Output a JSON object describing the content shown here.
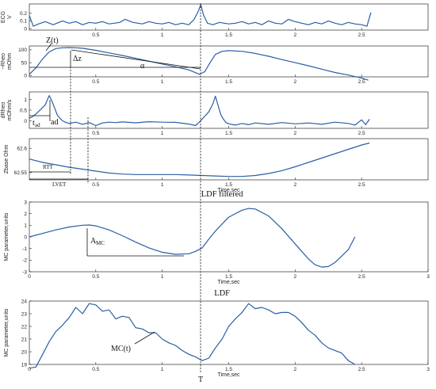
{
  "chart_data": [
    {
      "id": "ecg",
      "type": "line",
      "title": "",
      "xlabel": "",
      "ylabel": "ECG\nV",
      "xlim": [
        0,
        3
      ],
      "ylim": [
        -0.02,
        0.32
      ],
      "yticks": [
        0,
        0.1,
        0.2
      ],
      "xticks": [
        0.5,
        1,
        1.5,
        2,
        2.5
      ],
      "xticklabels": [
        "0.5",
        "1",
        "1.5",
        "2",
        "2.5"
      ],
      "series": [
        {
          "x": [
            0,
            0.03,
            0.07,
            0.12,
            0.18,
            0.25,
            0.3,
            0.35,
            0.4,
            0.45,
            0.5,
            0.55,
            0.6,
            0.68,
            0.72,
            0.78,
            0.85,
            0.9,
            0.95,
            1.0,
            1.05,
            1.1,
            1.15,
            1.2,
            1.24,
            1.27,
            1.29,
            1.31,
            1.34,
            1.38,
            1.43,
            1.5,
            1.55,
            1.6,
            1.65,
            1.7,
            1.75,
            1.8,
            1.85,
            1.9,
            1.95,
            2.0,
            2.05,
            2.1,
            2.15,
            2.2,
            2.25,
            2.3,
            2.35,
            2.4,
            2.45,
            2.5,
            2.54,
            2.57
          ],
          "values": [
            0.17,
            0.03,
            0.06,
            0.09,
            0.05,
            0.1,
            0.07,
            0.09,
            0.05,
            0.08,
            0.07,
            0.09,
            0.06,
            0.08,
            0.12,
            0.08,
            0.06,
            0.09,
            0.07,
            0.06,
            0.08,
            0.05,
            0.07,
            0.05,
            0.12,
            0.22,
            0.31,
            0.18,
            0.07,
            0.05,
            0.08,
            0.06,
            0.07,
            0.09,
            0.06,
            0.08,
            0.05,
            0.1,
            0.07,
            0.06,
            0.12,
            0.09,
            0.07,
            0.05,
            0.08,
            0.06,
            0.1,
            0.07,
            0.05,
            0.08,
            0.06,
            0.05,
            0.03,
            0.21
          ]
        }
      ]
    },
    {
      "id": "rheo",
      "type": "line",
      "title": "",
      "xlabel": "",
      "ylabel": "−Rheo\nmOhm",
      "xlim": [
        0,
        3
      ],
      "ylim": [
        -5,
        115
      ],
      "yticks": [
        0,
        50,
        100
      ],
      "xticks": [
        0.5,
        1,
        1.5,
        2,
        2.5
      ],
      "xticklabels": [
        "0.5",
        "1",
        "1.5",
        "2",
        "2.5"
      ],
      "series": [
        {
          "x": [
            0,
            0.05,
            0.1,
            0.15,
            0.2,
            0.25,
            0.3,
            0.35,
            0.4,
            0.5,
            0.6,
            0.7,
            0.8,
            0.9,
            1.0,
            1.1,
            1.2,
            1.28,
            1.32,
            1.36,
            1.4,
            1.45,
            1.5,
            1.6,
            1.7,
            1.8,
            1.9,
            2.0,
            2.1,
            2.2,
            2.3,
            2.4,
            2.5,
            2.55
          ],
          "values": [
            5,
            30,
            65,
            92,
            105,
            108,
            109,
            108,
            106,
            98,
            88,
            78,
            67,
            56,
            45,
            34,
            22,
            5,
            15,
            50,
            82,
            94,
            97,
            94,
            86,
            75,
            62,
            50,
            38,
            25,
            12,
            2,
            -10,
            -18
          ]
        }
      ]
    },
    {
      "id": "drheo",
      "type": "line",
      "title": "",
      "xlabel": "",
      "ylabel": "dRheo\nmOhm/s",
      "xlim": [
        0,
        3
      ],
      "ylim": [
        -0.35,
        1.35
      ],
      "yticks": [
        0,
        0.5,
        1
      ],
      "xticks": [
        0.5,
        1,
        1.5,
        2,
        2.5
      ],
      "xticklabels": [
        "0.5",
        "1",
        "1.5",
        "2",
        "2.5"
      ],
      "series": [
        {
          "x": [
            0,
            0.03,
            0.06,
            0.09,
            0.12,
            0.15,
            0.17,
            0.19,
            0.21,
            0.23,
            0.25,
            0.27,
            0.3,
            0.35,
            0.4,
            0.45,
            0.5,
            0.55,
            0.6,
            0.65,
            0.7,
            0.8,
            0.9,
            1.0,
            1.1,
            1.2,
            1.25,
            1.28,
            1.31,
            1.35,
            1.38,
            1.4,
            1.42,
            1.44,
            1.46,
            1.48,
            1.5,
            1.55,
            1.6,
            1.65,
            1.7,
            1.8,
            1.9,
            2.0,
            2.1,
            2.2,
            2.3,
            2.4,
            2.45,
            2.5,
            2.53,
            2.56
          ],
          "values": [
            0.12,
            0.22,
            0.38,
            0.56,
            0.75,
            1.18,
            0.92,
            0.6,
            0.28,
            0.12,
            0.0,
            -0.06,
            -0.12,
            -0.06,
            -0.16,
            -0.08,
            -0.22,
            -0.1,
            -0.06,
            -0.08,
            -0.05,
            -0.09,
            -0.04,
            -0.06,
            -0.07,
            -0.15,
            -0.22,
            -0.05,
            0.15,
            0.42,
            0.78,
            1.15,
            0.72,
            0.3,
            0.08,
            -0.08,
            -0.14,
            -0.2,
            -0.12,
            -0.18,
            -0.1,
            -0.16,
            -0.08,
            -0.14,
            -0.1,
            -0.16,
            -0.06,
            -0.12,
            -0.2,
            0.05,
            -0.18,
            0.08
          ]
        }
      ]
    },
    {
      "id": "zbase",
      "type": "line",
      "title": "",
      "xlabel": "Time,sec",
      "ylabel": "Zbase Ohm",
      "xlim": [
        0,
        3
      ],
      "ylim": [
        62.535,
        62.62
      ],
      "yticks": [
        62.55,
        62.6
      ],
      "yticklabels": [
        "62.55",
        "62.6"
      ],
      "xticks": [
        0.5,
        1,
        1.5,
        2,
        2.5
      ],
      "xticklabels": [
        "0.5",
        "1",
        "1.5",
        "2",
        "2.5"
      ],
      "series": [
        {
          "x": [
            0,
            0.1,
            0.2,
            0.3,
            0.4,
            0.5,
            0.6,
            0.7,
            0.8,
            0.9,
            1.0,
            1.1,
            1.2,
            1.3,
            1.4,
            1.5,
            1.6,
            1.7,
            1.8,
            1.9,
            2.0,
            2.1,
            2.2,
            2.3,
            2.4,
            2.5,
            2.56
          ],
          "values": [
            62.578,
            62.571,
            62.566,
            62.561,
            62.557,
            62.553,
            62.549,
            62.547,
            62.546,
            62.546,
            62.546,
            62.546,
            62.545,
            62.544,
            62.543,
            62.542,
            62.542,
            62.544,
            62.548,
            62.554,
            62.562,
            62.571,
            62.58,
            62.589,
            62.598,
            62.607,
            62.611
          ]
        }
      ]
    },
    {
      "id": "ldf-filtered",
      "type": "line",
      "title": "LDF filtered",
      "xlabel": "Time,sec",
      "ylabel": "MC parameter,units",
      "xlim": [
        0,
        3
      ],
      "ylim": [
        -3,
        3
      ],
      "yticks": [
        -3,
        -2,
        -1,
        0,
        1,
        2,
        3
      ],
      "xticks": [
        0,
        0.5,
        1,
        1.5,
        2,
        2.5,
        3
      ],
      "xticklabels": [
        "0",
        "0.5",
        "1",
        "1.5",
        "2",
        "2.5",
        "3"
      ],
      "series": [
        {
          "x": [
            0,
            0.1,
            0.2,
            0.3,
            0.4,
            0.45,
            0.5,
            0.6,
            0.7,
            0.8,
            0.9,
            1.0,
            1.1,
            1.2,
            1.25,
            1.3,
            1.35,
            1.4,
            1.5,
            1.6,
            1.65,
            1.7,
            1.8,
            1.9,
            2.0,
            2.1,
            2.15,
            2.2,
            2.25,
            2.3,
            2.4,
            2.45
          ],
          "values": [
            0.0,
            0.3,
            0.6,
            0.85,
            1.0,
            1.02,
            0.95,
            0.6,
            0.1,
            -0.45,
            -0.95,
            -1.32,
            -1.5,
            -1.45,
            -1.25,
            -0.95,
            -0.2,
            0.5,
            1.7,
            2.3,
            2.45,
            2.4,
            1.8,
            0.7,
            -0.6,
            -1.9,
            -2.4,
            -2.6,
            -2.55,
            -2.2,
            -1.1,
            0.0
          ]
        }
      ]
    },
    {
      "id": "ldf",
      "type": "line",
      "title": "LDF",
      "xlabel": "Time,sec",
      "ylabel": "MC parameter,units",
      "xlim": [
        0,
        3
      ],
      "ylim": [
        19,
        24
      ],
      "yticks": [
        19,
        20,
        21,
        22,
        23,
        24
      ],
      "xticks": [
        0,
        0.5,
        1,
        1.5,
        2,
        2.5,
        3
      ],
      "xticklabels": [
        "0",
        "0.5",
        "1",
        "1.5",
        "2",
        "2.5",
        "3"
      ],
      "series": [
        {
          "x": [
            0,
            0.05,
            0.1,
            0.15,
            0.2,
            0.25,
            0.3,
            0.35,
            0.4,
            0.45,
            0.5,
            0.55,
            0.6,
            0.65,
            0.7,
            0.75,
            0.8,
            0.85,
            0.9,
            0.95,
            1.0,
            1.05,
            1.1,
            1.15,
            1.2,
            1.25,
            1.3,
            1.35,
            1.4,
            1.45,
            1.5,
            1.55,
            1.6,
            1.65,
            1.7,
            1.75,
            1.8,
            1.85,
            1.9,
            1.95,
            2.0,
            2.05,
            2.1,
            2.15,
            2.2,
            2.25,
            2.3,
            2.35,
            2.4,
            2.45
          ],
          "values": [
            18.7,
            18.8,
            19.8,
            20.8,
            21.6,
            22.1,
            22.7,
            23.5,
            23.0,
            23.8,
            23.7,
            23.2,
            23.3,
            22.6,
            22.8,
            22.7,
            21.9,
            21.8,
            21.5,
            21.5,
            21.0,
            20.7,
            20.5,
            20.1,
            19.8,
            19.6,
            19.3,
            19.5,
            20.3,
            21.0,
            22.0,
            22.6,
            23.1,
            23.8,
            23.4,
            23.5,
            23.3,
            23.0,
            23.1,
            23.1,
            22.8,
            22.3,
            21.7,
            21.3,
            20.7,
            20.3,
            20.1,
            19.9,
            19.3,
            19.0
          ]
        }
      ]
    }
  ],
  "annotations": {
    "z_t": "Z(t)",
    "delta_z": "Δz",
    "alpha": "α",
    "ad": "ad",
    "t_ad": "t",
    "t_ad_sub": "ad",
    "rtt": "RTT",
    "lvet": "LVET",
    "a_mc": "A",
    "a_mc_sub": "MC",
    "mc_t": "MC(t)",
    "t_marker": "T"
  },
  "colors": {
    "series": "#2a5fa6",
    "axes": "#2b2b2b",
    "annotation": "#111111"
  }
}
